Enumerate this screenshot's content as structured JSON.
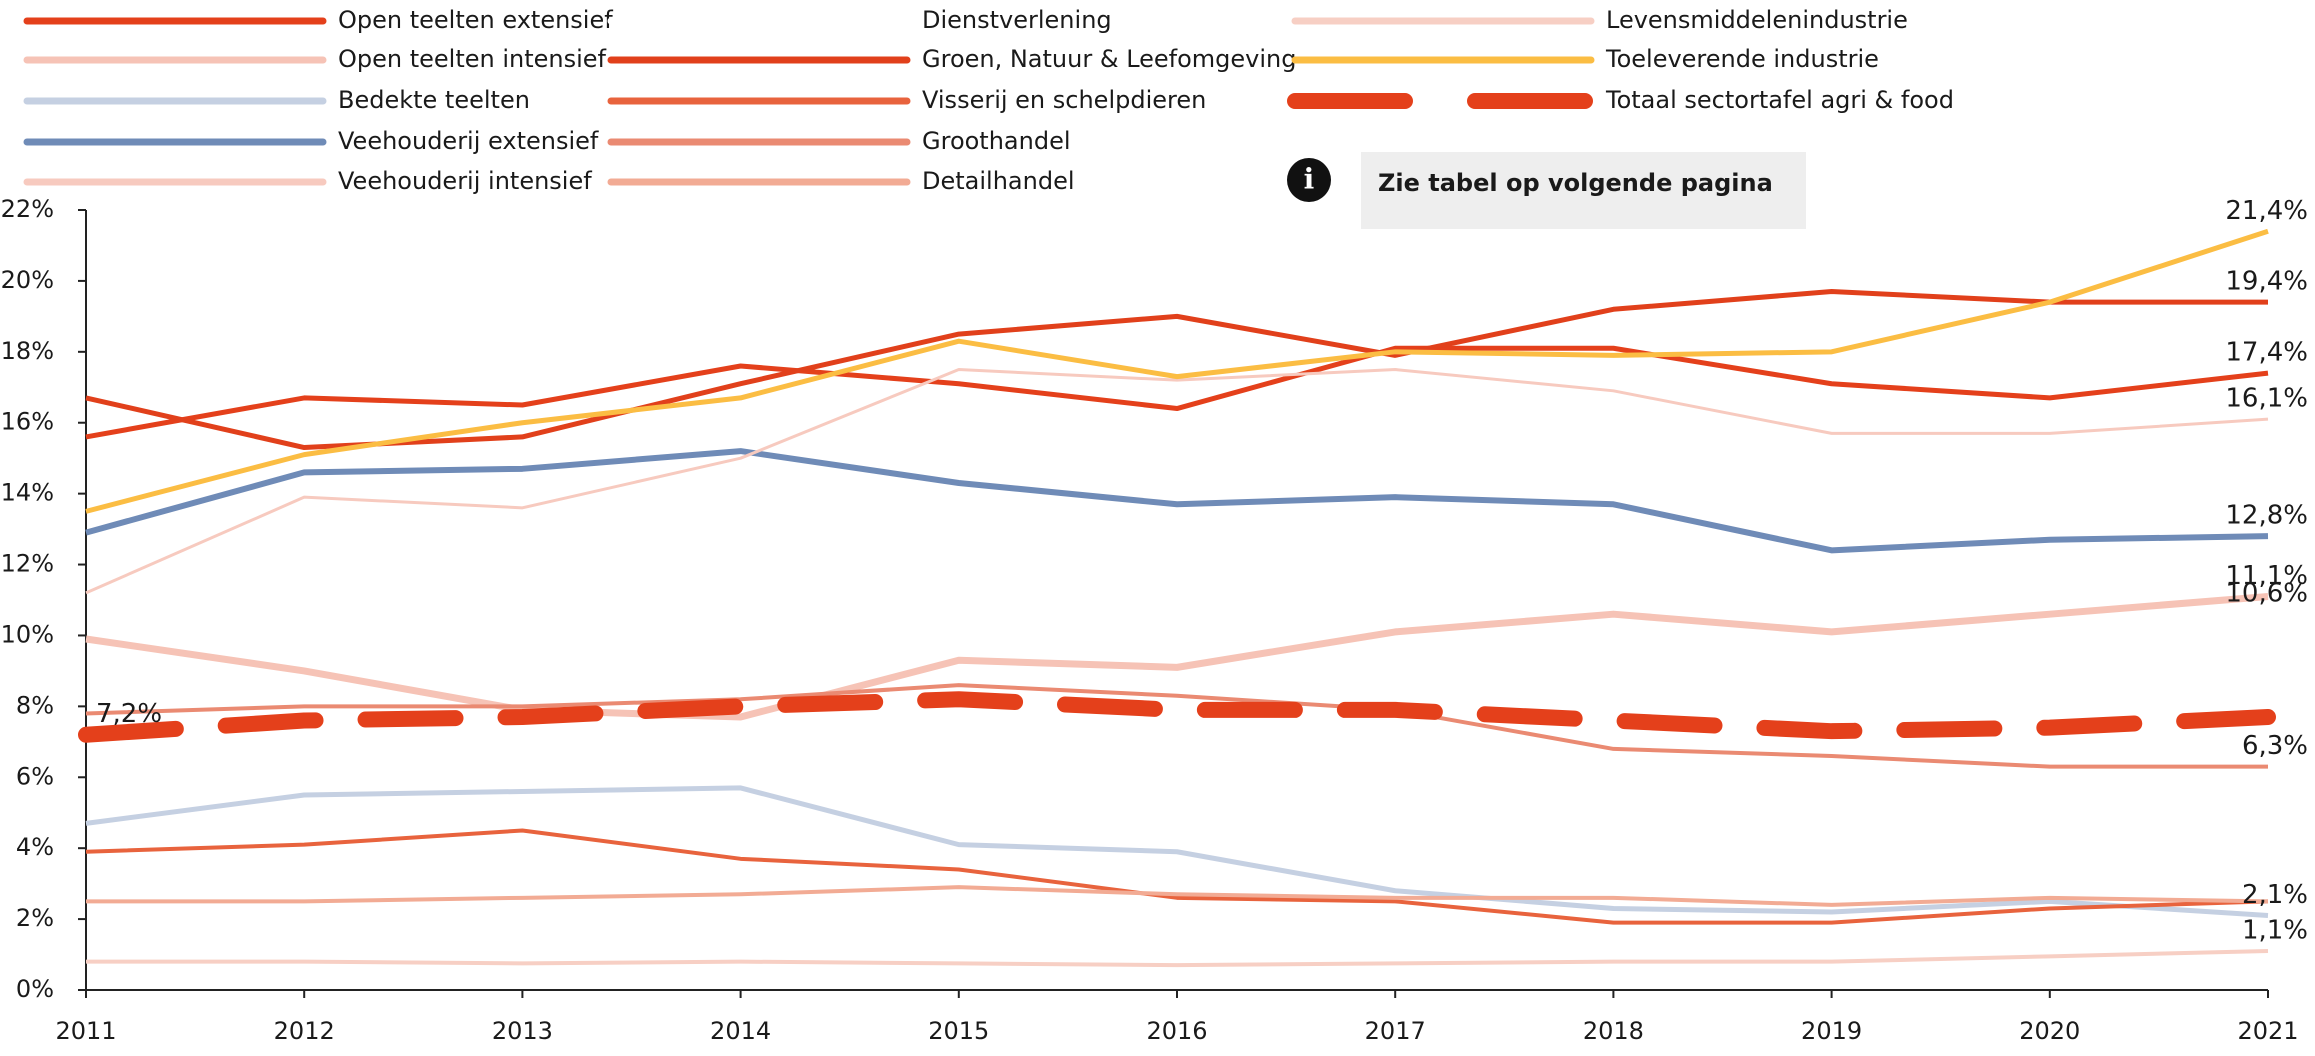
{
  "chart_data": {
    "type": "line",
    "x": [
      2011,
      2012,
      2013,
      2014,
      2015,
      2016,
      2017,
      2018,
      2019,
      2020,
      2021
    ],
    "xlim": [
      2011,
      2021
    ],
    "xticks": [
      2011,
      2012,
      2013,
      2014,
      2015,
      2016,
      2017,
      2018,
      2019,
      2020,
      2021
    ],
    "ylim": [
      0,
      22
    ],
    "yticks": [
      {
        "value": 0,
        "label": "0%"
      },
      {
        "value": 2,
        "label": "2%"
      },
      {
        "value": 4,
        "label": "4%"
      },
      {
        "value": 6,
        "label": "6%"
      },
      {
        "value": 8,
        "label": "8%"
      },
      {
        "value": 10,
        "label": "10%"
      },
      {
        "value": 12,
        "label": "12%"
      },
      {
        "value": 14,
        "label": "14%"
      },
      {
        "value": 16,
        "label": "16%"
      },
      {
        "value": 18,
        "label": "18%"
      },
      {
        "value": 20,
        "label": "20%"
      },
      {
        "value": 22,
        "label": "22%"
      }
    ],
    "series": [
      {
        "name": "Open teelten extensief",
        "color": "#e4401b",
        "line_width": 5,
        "values": [
          15.6,
          16.7,
          16.5,
          17.6,
          17.1,
          16.4,
          18.1,
          18.1,
          17.1,
          16.7,
          17.4
        ]
      },
      {
        "name": "Open teelten intensief",
        "color": "#f6c3b6",
        "line_width": 7,
        "values": [
          9.9,
          9.0,
          7.9,
          7.7,
          9.3,
          9.1,
          10.1,
          10.6,
          10.1,
          10.6,
          11.1
        ]
      },
      {
        "name": "Bedekte teelten",
        "color": "#c5d0e2",
        "line_width": 5,
        "values": [
          4.7,
          5.5,
          5.6,
          5.7,
          4.1,
          3.9,
          2.8,
          2.3,
          2.2,
          2.5,
          2.1
        ]
      },
      {
        "name": "Veehouderij extensief",
        "color": "#6f8bb7",
        "line_width": 6,
        "values": [
          12.9,
          14.6,
          14.7,
          15.2,
          14.3,
          13.7,
          13.9,
          13.7,
          12.4,
          12.7,
          12.8
        ]
      },
      {
        "name": "Veehouderij intensief",
        "color": "#f7cabf",
        "line_width": 3,
        "values": [
          11.2,
          13.9,
          13.6,
          15.0,
          17.5,
          17.2,
          17.5,
          16.9,
          15.7,
          15.7,
          16.1
        ]
      },
      {
        "name": "Dienstverlening",
        "color": "#ffffff",
        "line_width": 4,
        "values": [
          null,
          null,
          null,
          null,
          null,
          null,
          null,
          null,
          null,
          null,
          null
        ]
      },
      {
        "name": "Groen, Natuur & Leefomgeving",
        "color": "#e1401b",
        "line_width": 5,
        "values": [
          16.7,
          15.3,
          15.6,
          17.1,
          18.5,
          19.0,
          17.9,
          19.2,
          19.7,
          19.4,
          19.4
        ]
      },
      {
        "name": "Visserij en schelpdieren",
        "color": "#e8633d",
        "line_width": 4,
        "values": [
          3.9,
          4.1,
          4.5,
          3.7,
          3.4,
          2.6,
          2.5,
          1.9,
          1.9,
          2.3,
          2.5
        ]
      },
      {
        "name": "Groothandel",
        "color": "#ea8a72",
        "line_width": 4,
        "values": [
          7.8,
          8.0,
          8.0,
          8.2,
          8.6,
          8.3,
          7.9,
          6.8,
          6.6,
          6.3,
          6.3
        ]
      },
      {
        "name": "Detailhandel",
        "color": "#f2ab94",
        "line_width": 4,
        "values": [
          2.5,
          2.5,
          2.6,
          2.7,
          2.9,
          2.7,
          2.6,
          2.6,
          2.4,
          2.6,
          2.5
        ]
      },
      {
        "name": "Levensmiddelenindustrie",
        "color": "#f7cfc4",
        "line_width": 4,
        "values": [
          0.8,
          0.8,
          0.75,
          0.8,
          0.75,
          0.7,
          0.75,
          0.8,
          0.8,
          0.95,
          1.1
        ]
      },
      {
        "name": "Toeleverende industrie",
        "color": "#fbbd43",
        "line_width": 5,
        "values": [
          13.5,
          15.1,
          16.0,
          16.7,
          18.3,
          17.3,
          18.0,
          17.9,
          18.0,
          19.4,
          21.4
        ]
      },
      {
        "name": "Totaal sectortafel agri & food",
        "color": "#e4401b",
        "line_width": 16,
        "dashed": true,
        "values": [
          7.2,
          7.6,
          7.7,
          8.0,
          8.2,
          7.9,
          7.9,
          7.6,
          7.3,
          7.4,
          7.7
        ]
      }
    ],
    "end_labels": [
      {
        "text": "21,4%",
        "x": 2021,
        "value": 21.4
      },
      {
        "text": "19,4%",
        "x": 2021,
        "value": 19.4
      },
      {
        "text": "17,4%",
        "x": 2021,
        "value": 17.4
      },
      {
        "text": "16,1%",
        "x": 2021,
        "value": 16.1
      },
      {
        "text": "12,8%",
        "x": 2021,
        "value": 12.8
      },
      {
        "text": "10,6%",
        "x": 2021,
        "value": 10.6
      },
      {
        "text": "11,1%",
        "x": 2021,
        "value": 11.1
      },
      {
        "text": "6,3%",
        "x": 2021,
        "value": 6.3
      },
      {
        "text": "2,1%",
        "x": 2021,
        "value": 2.1
      },
      {
        "text": "1,1%",
        "x": 2021,
        "value": 1.1
      },
      {
        "text": "7,2%",
        "x": 2011,
        "value": 7.2
      }
    ],
    "info_box": "Zie tabel op volgende pagina"
  }
}
